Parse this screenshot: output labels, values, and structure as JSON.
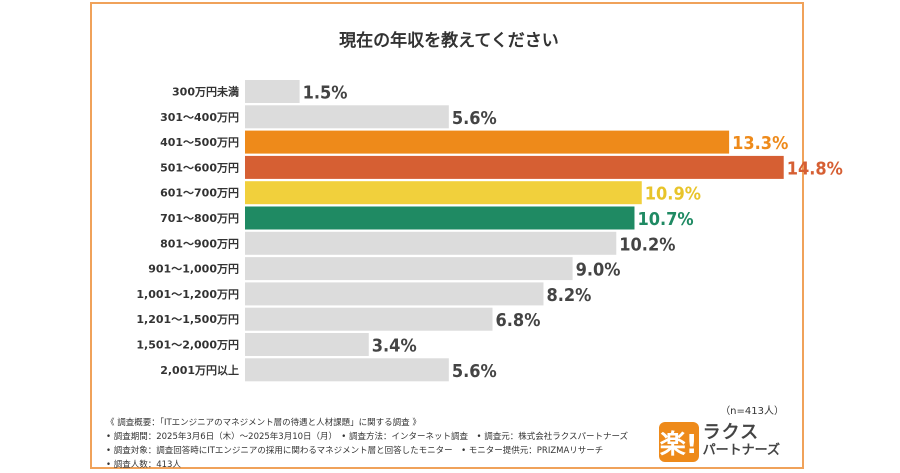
{
  "title": "現在の年収を教えてください",
  "sample_note": "（n=413人）",
  "footnotes": [
    "《 調査概要：「ITエンジニアのマネジメント層の待遇と人材課題」に関する調査 》",
    "• 調査期間：2025年3月6日（木）〜2025年3月10日（月）　• 調査方法：インターネット調査　• 調査元：株式会社ラクスパートナーズ",
    "• 調査対象：調査回答時にITエンジニアの採用に関わるマネジメント層と回答したモニター　• モニター提供元：PRIZMAリサーチ",
    "• 調査人数：413人"
  ],
  "logo": {
    "mark": "楽!",
    "line1": "ラクス",
    "line2": "パートナーズ",
    "color": "#ee8a1a"
  },
  "chart_data": {
    "type": "bar",
    "orientation": "horizontal",
    "title": "現在の年収を教えてください",
    "xlabel": "",
    "ylabel": "",
    "unit": "%",
    "xlim": [
      0,
      15
    ],
    "grid": false,
    "categories": [
      "300万円未満",
      "301〜400万円",
      "401〜500万円",
      "501〜600万円",
      "601〜700万円",
      "701〜800万円",
      "801〜900万円",
      "901〜1,000万円",
      "1,001〜1,200万円",
      "1,201〜1,500万円",
      "1,501〜2,000万円",
      "2,001万円以上"
    ],
    "values": [
      1.5,
      5.6,
      13.3,
      14.8,
      10.9,
      10.7,
      10.2,
      9.0,
      8.2,
      6.8,
      3.4,
      5.6
    ],
    "value_labels": [
      "1.5%",
      "5.6%",
      "13.3%",
      "14.8%",
      "10.9%",
      "10.7%",
      "10.2%",
      "9.0%",
      "8.2%",
      "6.8%",
      "3.4%",
      "5.6%"
    ],
    "bar_colors": [
      "#dcdcdc",
      "#dcdcdc",
      "#ee8a1a",
      "#d65f33",
      "#f1d03c",
      "#1f8a63",
      "#dcdcdc",
      "#dcdcdc",
      "#dcdcdc",
      "#dcdcdc",
      "#dcdcdc",
      "#dcdcdc"
    ],
    "label_colors": [
      "#444444",
      "#444444",
      "#ee8a1a",
      "#d65f33",
      "#e8c42a",
      "#1f8a63",
      "#444444",
      "#444444",
      "#444444",
      "#444444",
      "#444444",
      "#444444"
    ]
  }
}
